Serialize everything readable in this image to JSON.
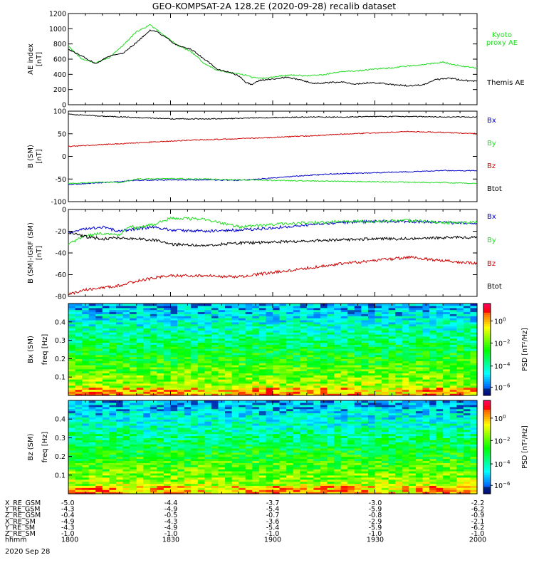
{
  "title": "GEO-KOMPSAT-2A 128.2E (2020-09-28) recalib dataset",
  "colors": {
    "black": "#000000",
    "red": "#d00000",
    "green": "#22dd22",
    "blue": "#0000c8"
  },
  "time_axis": {
    "start": "18:00",
    "end": "20:00",
    "ticks": [
      "1800",
      "1830",
      "1900",
      "1930",
      "2000"
    ],
    "date_label": "2020 Sep 28"
  },
  "orbit_table": {
    "rows": [
      {
        "label": "X_RE_GSM",
        "values": [
          "-5.0",
          "-4.4",
          "-3.7",
          "-3.0",
          "-2.2"
        ]
      },
      {
        "label": "Y_RE_GSM",
        "values": [
          "-4.3",
          "-4.9",
          "-5.4",
          "-5.9",
          "-6.2"
        ]
      },
      {
        "label": "Z_RE_GSM",
        "values": [
          "-0.4",
          "-0.5",
          "-0.7",
          "-0.8",
          "-0.9"
        ]
      },
      {
        "label": "X_RE_SM",
        "values": [
          "-4.9",
          "-4.3",
          "-3.6",
          "-2.9",
          "-2.1"
        ]
      },
      {
        "label": "Y_RE_SM",
        "values": [
          "-4.3",
          "-4.9",
          "-5.4",
          "-5.9",
          "-6.2"
        ]
      },
      {
        "label": "Z_RE_SM",
        "values": [
          "-1.0",
          "-1.0",
          "-1.0",
          "-1.0",
          "-1.0"
        ]
      },
      {
        "label": "hhmm",
        "values": [
          "1800",
          "1830",
          "1900",
          "1930",
          "2000"
        ]
      }
    ]
  },
  "chart_data": [
    {
      "type": "line",
      "ylabel": "AE index [nT]",
      "ylim": [
        0,
        1200
      ],
      "yticks": [
        0,
        200,
        400,
        600,
        800,
        1000,
        1200
      ],
      "series": [
        {
          "name": "Kyoto proxy AE",
          "color": "green",
          "x": [
            0,
            4,
            8,
            12,
            16,
            20,
            24,
            28,
            32,
            36,
            40,
            44,
            48,
            52,
            54,
            58,
            62,
            66,
            70,
            74,
            78,
            82,
            86,
            90,
            94,
            98,
            102,
            106,
            110,
            114,
            120
          ],
          "y": [
            770,
            600,
            550,
            620,
            780,
            960,
            1050,
            920,
            780,
            700,
            540,
            450,
            420,
            390,
            360,
            350,
            380,
            390,
            380,
            390,
            420,
            440,
            450,
            470,
            480,
            500,
            520,
            540,
            560,
            520,
            480
          ]
        },
        {
          "name": "Themis AE",
          "color": "black",
          "x": [
            0,
            4,
            8,
            12,
            16,
            20,
            24,
            26,
            28,
            32,
            36,
            40,
            44,
            48,
            50,
            52,
            54,
            56,
            60,
            64,
            68,
            72,
            76,
            80,
            84,
            88,
            92,
            96,
            100,
            104,
            108,
            112,
            116,
            120
          ],
          "y": [
            730,
            640,
            540,
            640,
            680,
            820,
            980,
            960,
            900,
            780,
            730,
            600,
            460,
            420,
            380,
            300,
            260,
            320,
            340,
            360,
            330,
            280,
            290,
            300,
            270,
            290,
            280,
            260,
            250,
            260,
            330,
            350,
            320,
            310
          ]
        }
      ]
    },
    {
      "type": "line",
      "ylabel": "B (SM) [nT]",
      "ylim": [
        -100,
        100
      ],
      "yticks": [
        -100,
        -50,
        0,
        50,
        100
      ],
      "series": [
        {
          "name": "Bx",
          "color": "blue",
          "x": [
            0,
            10,
            20,
            30,
            40,
            50,
            60,
            70,
            80,
            90,
            100,
            110,
            120
          ],
          "y": [
            -62,
            -58,
            -53,
            -52,
            -52,
            -53,
            -48,
            -42,
            -38,
            -36,
            -34,
            -31,
            -32
          ]
        },
        {
          "name": "By",
          "color": "green",
          "x": [
            0,
            10,
            15,
            20,
            30,
            40,
            50,
            60,
            70,
            80,
            90,
            100,
            110,
            120
          ],
          "y": [
            -60,
            -57,
            -58,
            -50,
            -49,
            -50,
            -52,
            -53,
            -54,
            -55,
            -56,
            -57,
            -58,
            -60
          ]
        },
        {
          "name": "Bz",
          "color": "red",
          "x": [
            0,
            10,
            20,
            30,
            40,
            50,
            60,
            70,
            80,
            90,
            100,
            110,
            120
          ],
          "y": [
            22,
            26,
            30,
            34,
            37,
            39,
            42,
            45,
            49,
            52,
            55,
            53,
            50
          ]
        },
        {
          "name": "Btot",
          "color": "black",
          "x": [
            0,
            10,
            20,
            30,
            40,
            50,
            60,
            70,
            80,
            90,
            100,
            110,
            120
          ],
          "y": [
            93,
            89,
            86,
            83,
            83,
            84,
            86,
            87,
            87,
            88,
            88,
            87,
            87
          ]
        }
      ]
    },
    {
      "type": "line",
      "ylabel": "B (SM)-IGRF (SM) [nT]",
      "ylim": [
        -80,
        0
      ],
      "yticks": [
        -80,
        -60,
        -40,
        -20,
        0
      ],
      "series": [
        {
          "name": "Bx",
          "color": "blue",
          "x": [
            0,
            5,
            10,
            15,
            20,
            25,
            30,
            40,
            50,
            60,
            70,
            80,
            90,
            100,
            110,
            120
          ],
          "y": [
            -22,
            -18,
            -16,
            -20,
            -18,
            -16,
            -19,
            -20,
            -19,
            -17,
            -14,
            -12,
            -11,
            -11,
            -12,
            -13
          ]
        },
        {
          "name": "By",
          "color": "green",
          "x": [
            0,
            5,
            10,
            15,
            18,
            20,
            25,
            30,
            40,
            50,
            60,
            70,
            80,
            90,
            100,
            110,
            120
          ],
          "y": [
            -32,
            -24,
            -22,
            -24,
            -15,
            -17,
            -14,
            -8,
            -9,
            -16,
            -14,
            -12,
            -11,
            -11,
            -10,
            -12,
            -12
          ]
        },
        {
          "name": "Bz",
          "color": "red",
          "x": [
            0,
            5,
            10,
            15,
            20,
            25,
            30,
            40,
            50,
            60,
            70,
            80,
            90,
            100,
            110,
            120
          ],
          "y": [
            -78,
            -74,
            -72,
            -70,
            -66,
            -63,
            -61,
            -61,
            -62,
            -58,
            -54,
            -50,
            -47,
            -44,
            -47,
            -50
          ]
        },
        {
          "name": "Btot",
          "color": "black",
          "x": [
            0,
            5,
            10,
            15,
            20,
            25,
            30,
            40,
            50,
            60,
            70,
            80,
            90,
            100,
            110,
            120
          ],
          "y": [
            -21,
            -25,
            -27,
            -26,
            -27,
            -28,
            -32,
            -33,
            -31,
            -30,
            -29,
            -28,
            -27,
            -27,
            -26,
            -26
          ]
        }
      ]
    },
    {
      "type": "heatmap",
      "ylabel": "Bx (SM) freq [Hz]",
      "ylim": [
        0,
        0.5
      ],
      "yticks": [
        0.1,
        0.2,
        0.3,
        0.4
      ],
      "colorbar": {
        "label": "PSD [nT^2/Hz]",
        "ticks": [
          "10^0",
          "10^-2",
          "10^-4",
          "10^-6"
        ]
      }
    },
    {
      "type": "heatmap",
      "ylabel": "Bz (SM) freq [Hz]",
      "ylim": [
        0,
        0.5
      ],
      "yticks": [
        0.1,
        0.2,
        0.3,
        0.4
      ],
      "colorbar": {
        "label": "PSD [nT^2/Hz]",
        "ticks": [
          "10^0",
          "10^-2",
          "10^-4",
          "10^-6"
        ]
      }
    }
  ]
}
